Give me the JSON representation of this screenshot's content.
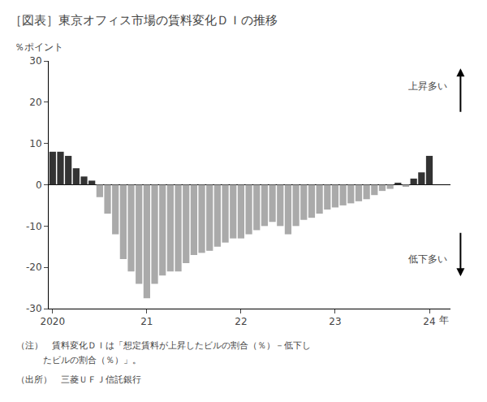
{
  "chart_data": {
    "type": "bar",
    "title": "［図表］東京オフィス市場の賃料変化ＤＩの推移",
    "y_label": "％ポイント",
    "x_label": "年",
    "annotations": [
      "上昇多い",
      "低下多い"
    ],
    "notes": [
      "（注）　賃料変化ＤＩは「想定賃料が上昇したビルの割合（％）－低下し",
      "　　　たビルの割合（％）」。",
      "（出所）　三菱ＵＦＪ信託銀行"
    ],
    "categories": [
      "2020",
      null,
      null,
      null,
      null,
      null,
      null,
      null,
      null,
      null,
      null,
      null,
      "21",
      null,
      null,
      null,
      null,
      null,
      null,
      null,
      null,
      null,
      null,
      null,
      "22",
      null,
      null,
      null,
      null,
      null,
      null,
      null,
      null,
      null,
      null,
      null,
      "23",
      null,
      null,
      null,
      null,
      null,
      null,
      null,
      null,
      null,
      null,
      null,
      "24"
    ],
    "values": [
      8.0,
      8.0,
      7.0,
      4.0,
      2.0,
      1.0,
      -3.0,
      -7.0,
      -12.0,
      -18.0,
      -21.0,
      -24.0,
      -27.5,
      -24.0,
      -22.0,
      -21.0,
      -21.0,
      -19.0,
      -17.0,
      -16.5,
      -16.0,
      -15.0,
      -14.0,
      -13.0,
      -13.0,
      -12.0,
      -11.0,
      -10.0,
      -9.0,
      -10.0,
      -12.0,
      -10.0,
      -8.5,
      -8.0,
      -7.0,
      -6.0,
      -5.5,
      -5.0,
      -4.5,
      -4.0,
      -3.5,
      -2.5,
      -1.5,
      -1.0,
      0.5,
      -0.5,
      1.5,
      3.0,
      7.0
    ],
    "colors": [
      "#333333",
      "#333333",
      "#333333",
      "#333333",
      "#333333",
      "#333333",
      "#aaaaaa",
      "#aaaaaa",
      "#aaaaaa",
      "#aaaaaa",
      "#aaaaaa",
      "#aaaaaa",
      "#aaaaaa",
      "#aaaaaa",
      "#aaaaaa",
      "#aaaaaa",
      "#aaaaaa",
      "#aaaaaa",
      "#aaaaaa",
      "#aaaaaa",
      "#aaaaaa",
      "#aaaaaa",
      "#aaaaaa",
      "#aaaaaa",
      "#aaaaaa",
      "#aaaaaa",
      "#aaaaaa",
      "#aaaaaa",
      "#aaaaaa",
      "#aaaaaa",
      "#aaaaaa",
      "#aaaaaa",
      "#aaaaaa",
      "#aaaaaa",
      "#aaaaaa",
      "#aaaaaa",
      "#aaaaaa",
      "#aaaaaa",
      "#aaaaaa",
      "#aaaaaa",
      "#aaaaaa",
      "#aaaaaa",
      "#aaaaaa",
      "#aaaaaa",
      "#333333",
      "#aaaaaa",
      "#333333",
      "#333333",
      "#333333"
    ],
    "ylim": [
      -30,
      30
    ],
    "yticks": [
      -30,
      -20,
      -10,
      0,
      10,
      20,
      30
    ],
    "grid": false
  }
}
